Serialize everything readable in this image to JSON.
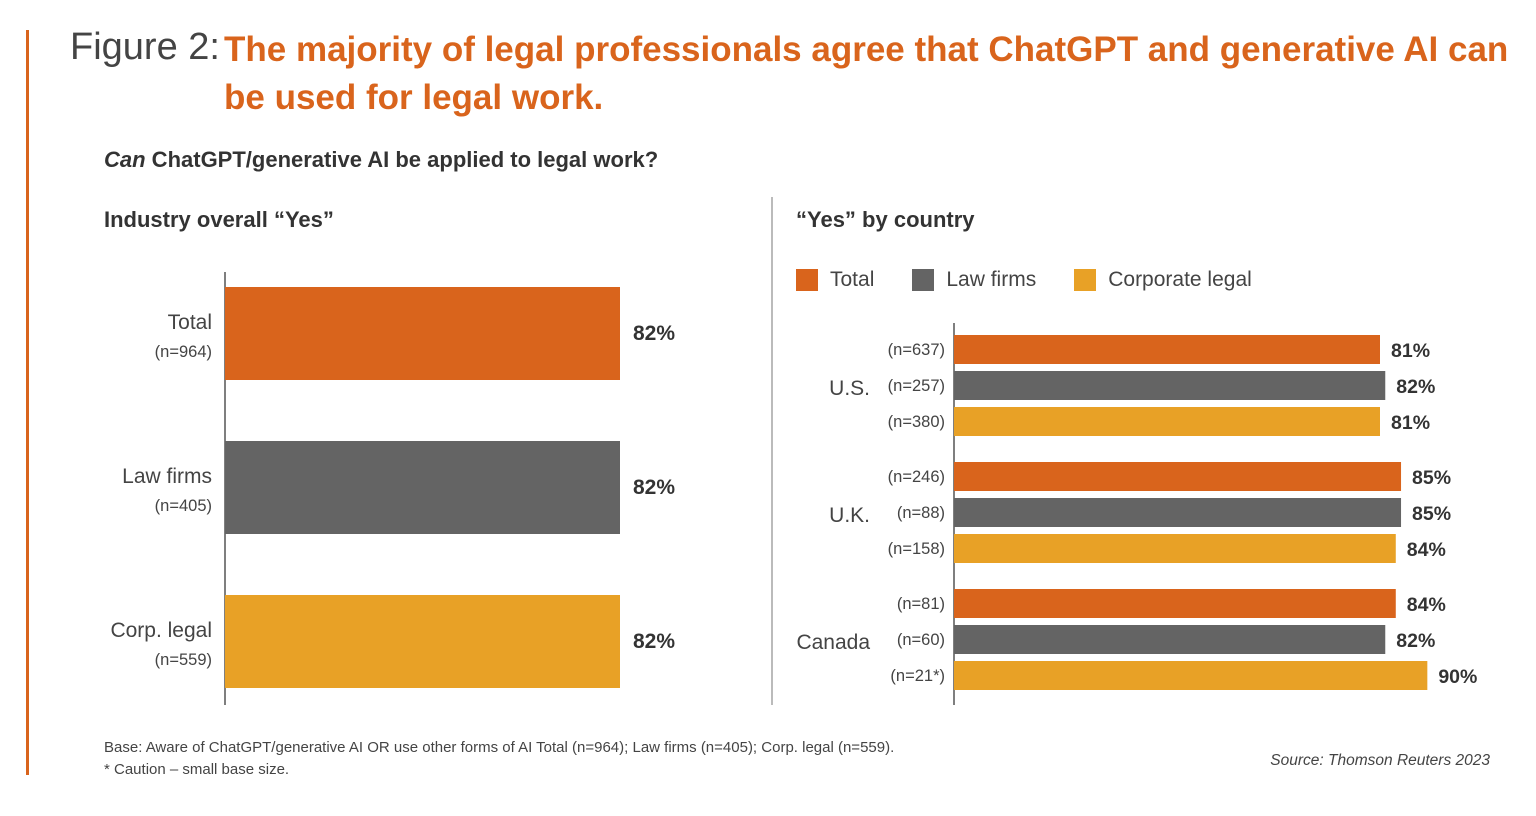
{
  "figure": {
    "label": "Figure 2:",
    "title": "The majority of legal professionals agree that ChatGPT and generative AI can be used for legal work.",
    "accent_color": "#D9641C"
  },
  "question": {
    "emphasis": "Can",
    "rest": " ChatGPT/generative AI be applied to legal work?"
  },
  "left_panel": {
    "title": "Industry overall “Yes”"
  },
  "right_panel": {
    "title": "“Yes” by country"
  },
  "legend": [
    {
      "label": "Total",
      "color": "#D9641C"
    },
    {
      "label": "Law firms",
      "color": "#646464"
    },
    {
      "label": "Corporate legal",
      "color": "#E8A126"
    }
  ],
  "chart_data": [
    {
      "type": "bar",
      "orientation": "horizontal",
      "title": "Industry overall “Yes”",
      "categories": [
        "Total",
        "Law firms",
        "Corp. legal"
      ],
      "sample_sizes": [
        "(n=964)",
        "(n=405)",
        "(n=559)"
      ],
      "values": [
        82,
        82,
        82
      ],
      "value_labels": [
        "82%",
        "82%",
        "82%"
      ],
      "colors": [
        "#D9641C",
        "#646464",
        "#E8A126"
      ],
      "xlim": [
        0,
        100
      ],
      "grid": false
    },
    {
      "type": "bar",
      "orientation": "horizontal",
      "title": "“Yes” by country",
      "categories": [
        "U.S.",
        "U.K.",
        "Canada"
      ],
      "series": [
        {
          "name": "Total",
          "color": "#D9641C",
          "values": [
            81,
            85,
            84
          ],
          "value_labels": [
            "81%",
            "85%",
            "84%"
          ],
          "sample_sizes": [
            "(n=637)",
            "(n=246)",
            "(n=81)"
          ]
        },
        {
          "name": "Law firms",
          "color": "#646464",
          "values": [
            82,
            85,
            82
          ],
          "value_labels": [
            "82%",
            "85%",
            "82%"
          ],
          "sample_sizes": [
            "(n=257)",
            "(n=88)",
            "(n=60)"
          ]
        },
        {
          "name": "Corporate legal",
          "color": "#E8A126",
          "values": [
            81,
            84,
            90
          ],
          "value_labels": [
            "81%",
            "84%",
            "90%"
          ],
          "sample_sizes": [
            "(n=380)",
            "(n=158)",
            "(n=21*)"
          ]
        }
      ],
      "xlim": [
        0,
        100
      ],
      "legend_position": "top-left",
      "grid": false
    }
  ],
  "footnote": {
    "line1": "Base: Aware of ChatGPT/generative AI OR use other forms of AI Total (n=964); Law firms (n=405); Corp. legal (n=559).",
    "line2": "* Caution – small base size."
  },
  "source": "Source: Thomson Reuters 2023"
}
